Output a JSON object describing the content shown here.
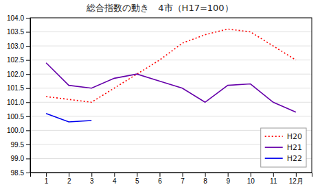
{
  "chart_data": {
    "type": "line",
    "title": "総合指数の動き　4市（H17=100）",
    "x": [
      1,
      2,
      3,
      4,
      5,
      6,
      7,
      8,
      9,
      10,
      11,
      12
    ],
    "xlim": [
      0.3,
      12.7
    ],
    "xticks": [
      1,
      2,
      3,
      4,
      5,
      6,
      7,
      8,
      9,
      10,
      11,
      {
        "value": 12,
        "label": "12月"
      }
    ],
    "ylim": [
      98.5,
      104.0
    ],
    "yticks": [
      98.5,
      {
        "value": 99,
        "label": "99.0"
      },
      99.5,
      {
        "value": 100,
        "label": "100.0"
      },
      100.5,
      {
        "value": 101,
        "label": "101.0"
      },
      101.5,
      {
        "value": 102,
        "label": "102.0"
      },
      102.5,
      {
        "value": 103,
        "label": "103.0"
      },
      103.5,
      {
        "value": 104,
        "label": "104.0"
      }
    ],
    "grid": true,
    "legend": "lower right",
    "series": [
      {
        "name": "H20",
        "color": "#FF0000",
        "line_style": "dotted",
        "values": [
          101.2,
          101.1,
          101.0,
          101.5,
          102.0,
          102.5,
          103.1,
          103.4,
          103.6,
          103.5,
          103.0,
          102.5
        ]
      },
      {
        "name": "H21",
        "color": "#6600AA",
        "line_style": "solid",
        "values": [
          102.4,
          101.6,
          101.5,
          101.85,
          102.0,
          101.75,
          101.5,
          101.0,
          101.6,
          101.65,
          101.0,
          100.65
        ]
      },
      {
        "name": "H22",
        "color": "#0000EE",
        "line_style": "solid",
        "values": [
          100.6,
          100.3,
          100.35,
          null,
          null,
          null,
          null,
          null,
          null,
          null,
          null,
          null
        ]
      }
    ]
  }
}
